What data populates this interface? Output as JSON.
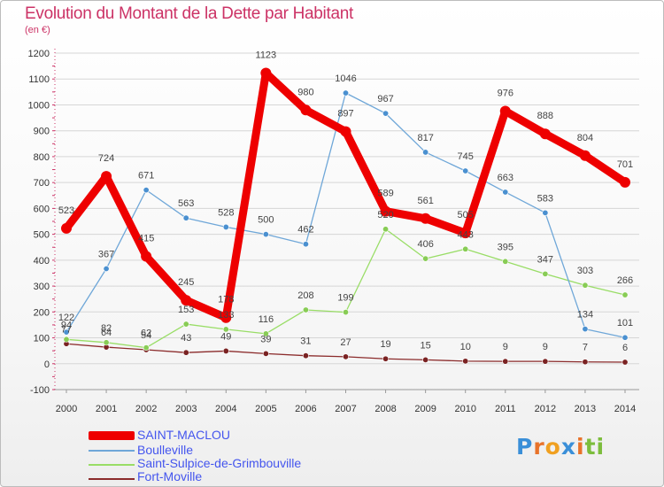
{
  "header": {
    "title": "Evolution du Montant de la Dette par Habitant",
    "unit": "(en €)"
  },
  "logo_text": "Proxiti",
  "chart_data": {
    "type": "line",
    "title": "Evolution du Montant de la Dette par Habitant",
    "ylabel": "(en €)",
    "xlabel": "",
    "x": [
      "2000",
      "2001",
      "2002",
      "2003",
      "2004",
      "2005",
      "2006",
      "2007",
      "2008",
      "2009",
      "2010",
      "2011",
      "2012",
      "2013",
      "2014"
    ],
    "yticks": [
      -100,
      0,
      100,
      200,
      300,
      400,
      500,
      600,
      700,
      800,
      900,
      1000,
      1100,
      1200
    ],
    "ylim": [
      -100,
      1200
    ],
    "grid": "horizontal",
    "legend_position": "bottom-left",
    "series": [
      {
        "name": "SAINT-MACLOU",
        "color": "#ee0000",
        "values": [
          523,
          724,
          415,
          245,
          178,
          1123,
          980,
          897,
          589,
          561,
          505,
          976,
          888,
          804,
          701
        ]
      },
      {
        "name": "Boulleville",
        "color": "#6fa7d8",
        "values": [
          122,
          367,
          671,
          563,
          528,
          500,
          462,
          1046,
          967,
          817,
          745,
          663,
          583,
          134,
          101
        ]
      },
      {
        "name": "Saint-Sulpice-de-Grimbouville",
        "color": "#99dd66",
        "values": [
          94,
          82,
          62,
          153,
          133,
          116,
          208,
          199,
          520,
          406,
          443,
          395,
          347,
          303,
          266
        ]
      },
      {
        "name": "Fort-Moville",
        "color": "#8b2b2b",
        "values": [
          77,
          64,
          54,
          43,
          49,
          39,
          31,
          27,
          19,
          15,
          10,
          9,
          9,
          7,
          6
        ]
      }
    ]
  }
}
